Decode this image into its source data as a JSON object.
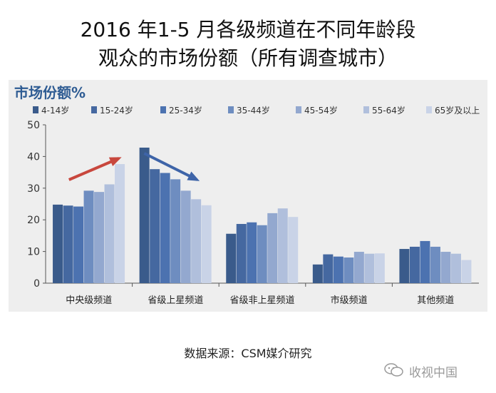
{
  "title": {
    "line1": "2016 年1-5 月各级频道在不同年龄段",
    "line2": "观众的市场份额（所有调查城市）"
  },
  "source_note": "数据来源：CSM媒介研究",
  "watermark": {
    "text": "收视中国"
  },
  "colors": {
    "panel_bg": "#eeeeee",
    "series": [
      "#3a5b8b",
      "#4568a0",
      "#4c72b0",
      "#6e8dc0",
      "#93a8cf",
      "#b0bfdc",
      "#c9d3e7"
    ],
    "arrow": "#c8473d",
    "arrow_down": "#3e64a8",
    "ylabel": "#2f5c93"
  },
  "chart_data": {
    "type": "bar",
    "ylabel": "市场份额%",
    "ylim": [
      0,
      50
    ],
    "yticks": [
      0,
      10,
      20,
      30,
      40,
      50
    ],
    "legend_position": "top",
    "categories": [
      "中央级频道",
      "省级上星频道",
      "省级非上星频道",
      "市级频道",
      "其他频道"
    ],
    "series": [
      {
        "name": "4-14岁",
        "values": [
          24.8,
          42.8,
          15.6,
          5.9,
          10.8
        ]
      },
      {
        "name": "15-24岁",
        "values": [
          24.5,
          36.0,
          18.7,
          9.1,
          11.5
        ]
      },
      {
        "name": "25-34岁",
        "values": [
          24.2,
          34.8,
          19.2,
          8.4,
          13.3
        ]
      },
      {
        "name": "35-44岁",
        "values": [
          29.2,
          32.8,
          18.3,
          8.1,
          11.5
        ]
      },
      {
        "name": "45-54岁",
        "values": [
          28.8,
          29.2,
          22.1,
          9.9,
          9.9
        ]
      },
      {
        "name": "55-64岁",
        "values": [
          31.2,
          26.5,
          23.6,
          9.3,
          9.3
        ]
      },
      {
        "name": "65岁及以上",
        "values": [
          37.6,
          24.6,
          20.9,
          9.4,
          7.3
        ]
      }
    ]
  }
}
